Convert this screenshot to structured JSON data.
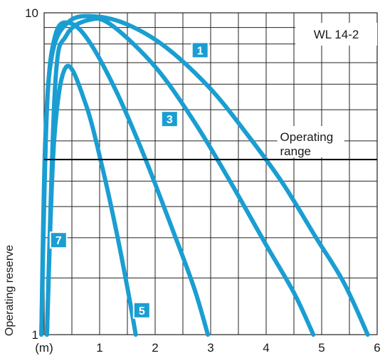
{
  "chart_data": {
    "type": "line",
    "title": "",
    "ylabel": "Operating reserve",
    "xlabel": "",
    "x_unit_label": "(m)",
    "xlim": [
      0,
      6
    ],
    "ylim": [
      1,
      10
    ],
    "y_scale": "log",
    "x_ticks": [
      1,
      2,
      3,
      4,
      5,
      6
    ],
    "y_ticks": [
      1,
      10
    ],
    "grid": true,
    "legend_box": "WL 14-2",
    "reference_line": {
      "y": 3.5,
      "label_line1": "Operating",
      "label_line2": "range"
    },
    "series": [
      {
        "name": "1",
        "points": [
          [
            -0.05,
            1
          ],
          [
            0.02,
            4
          ],
          [
            0.15,
            7.5
          ],
          [
            0.45,
            9.4
          ],
          [
            0.9,
            9.75
          ],
          [
            1.5,
            9.2
          ],
          [
            2.2,
            7.8
          ],
          [
            3.0,
            5.8
          ],
          [
            3.7,
            4.1
          ],
          [
            4.3,
            2.95
          ],
          [
            4.9,
            2.0
          ],
          [
            5.4,
            1.45
          ],
          [
            5.83,
            1
          ]
        ]
      },
      {
        "name": "3",
        "points": [
          [
            0.05,
            1
          ],
          [
            0.2,
            6
          ],
          [
            0.4,
            8.5
          ],
          [
            0.8,
            9.5
          ],
          [
            1.2,
            9.2
          ],
          [
            2.0,
            6.8
          ],
          [
            2.7,
            4.6
          ],
          [
            3.3,
            3.1
          ],
          [
            4.0,
            1.9
          ],
          [
            4.5,
            1.35
          ],
          [
            4.85,
            1
          ]
        ]
      },
      {
        "name": "5",
        "points": [
          [
            -0.05,
            1
          ],
          [
            0.05,
            5
          ],
          [
            0.2,
            8.5
          ],
          [
            0.45,
            9.3
          ],
          [
            0.8,
            8.2
          ],
          [
            1.3,
            5.7
          ],
          [
            1.8,
            3.6
          ],
          [
            2.3,
            2.15
          ],
          [
            2.7,
            1.4
          ],
          [
            2.95,
            1
          ]
        ]
      },
      {
        "name": "7",
        "points": [
          [
            0.05,
            1
          ],
          [
            0.18,
            4
          ],
          [
            0.4,
            6.8
          ],
          [
            0.75,
            5.2
          ],
          [
            1.05,
            3.3
          ],
          [
            1.3,
            2.1
          ],
          [
            1.5,
            1.4
          ],
          [
            1.65,
            1
          ]
        ]
      }
    ],
    "series_label_positions_data": [
      {
        "series": "1",
        "x": 2.65,
        "y": 7.2
      },
      {
        "series": "3",
        "x": 2.1,
        "y": 4.4
      },
      {
        "series": "5",
        "x": 1.6,
        "y": 1.12
      },
      {
        "series": "7",
        "x": 0.1,
        "y": 1.85
      }
    ],
    "colors": {
      "curve": "#1a9ed2",
      "grid": "#222222",
      "badge": "#1a9ed2"
    }
  }
}
